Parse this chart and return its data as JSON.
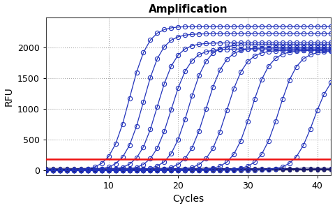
{
  "title": "Amplification",
  "xlabel": "Cycles",
  "ylabel": "RFU",
  "xlim": [
    1,
    42
  ],
  "ylim": [
    -80,
    2500
  ],
  "xticks": [
    10,
    20,
    30,
    40
  ],
  "yticks": [
    0,
    500,
    1000,
    1500,
    2000
  ],
  "threshold_y": 185,
  "threshold_color": "#ee1111",
  "curve_color": "#2233bb",
  "neg_color": "#1a1a6e",
  "flat_color": "#999999",
  "background_color": "#ffffff",
  "n_cycles": 42,
  "amplification_curves": [
    {
      "midpoint": 13.0,
      "plateau": 2350,
      "slope": 0.75
    },
    {
      "midpoint": 15.0,
      "plateau": 2230,
      "slope": 0.75
    },
    {
      "midpoint": 17.0,
      "plateau": 2080,
      "slope": 0.75
    },
    {
      "midpoint": 19.0,
      "plateau": 1980,
      "slope": 0.75
    },
    {
      "midpoint": 21.5,
      "plateau": 2050,
      "slope": 0.75
    },
    {
      "midpoint": 24.0,
      "plateau": 2000,
      "slope": 0.75
    },
    {
      "midpoint": 27.0,
      "plateau": 1960,
      "slope": 0.75
    },
    {
      "midpoint": 30.5,
      "plateau": 1960,
      "slope": 0.75
    },
    {
      "midpoint": 34.5,
      "plateau": 1950,
      "slope": 0.75
    },
    {
      "midpoint": 39.5,
      "plateau": 1650,
      "slope": 0.75
    }
  ],
  "neg_curves": [
    {
      "base": 30,
      "noise": 12
    },
    {
      "base": 20,
      "noise": 10
    },
    {
      "base": 15,
      "noise": 8
    },
    {
      "base": 10,
      "noise": 6
    },
    {
      "base": 8,
      "noise": 5
    },
    {
      "base": 5,
      "noise": 4
    }
  ],
  "flat_curves": [
    {
      "base": 8,
      "noise": 3
    },
    {
      "base": 6,
      "noise": 3
    },
    {
      "base": 4,
      "noise": 2
    },
    {
      "base": 3,
      "noise": 2
    },
    {
      "base": 2,
      "noise": 2
    }
  ]
}
